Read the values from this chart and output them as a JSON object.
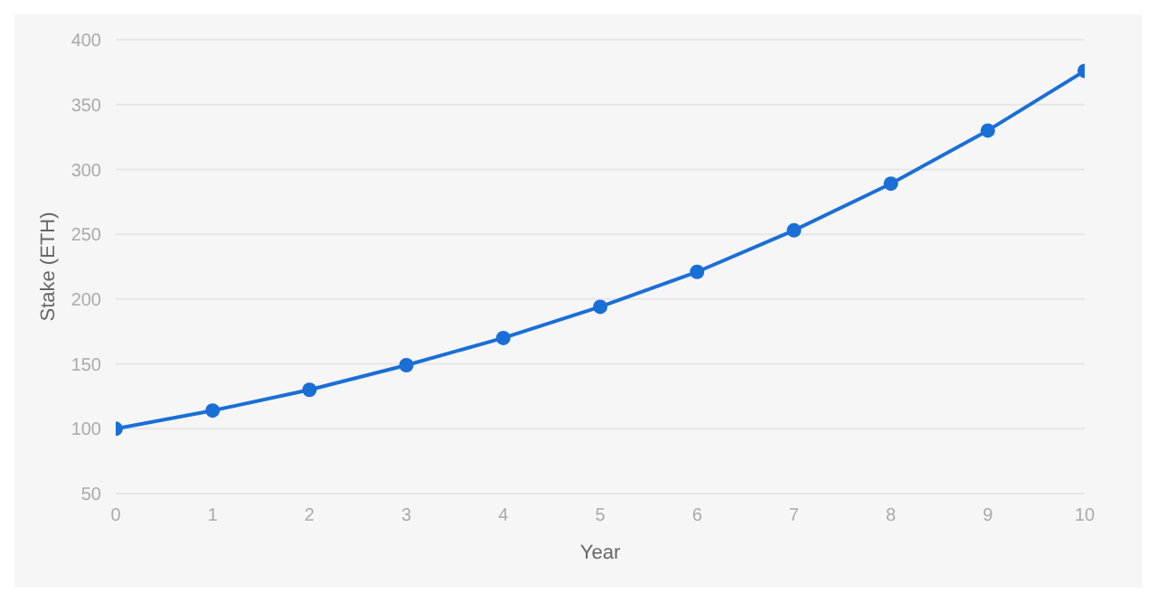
{
  "chart_data": {
    "type": "line",
    "xlabel": "Year",
    "ylabel": "Stake (ETH)",
    "x": [
      0,
      1,
      2,
      3,
      4,
      5,
      6,
      7,
      8,
      9,
      10
    ],
    "series": [
      {
        "color": "#1a6fd6",
        "values": [
          100,
          114,
          130,
          149,
          170,
          194,
          221,
          253,
          289,
          330,
          376
        ]
      }
    ],
    "xlim": [
      0,
      10
    ],
    "xticks": [
      0,
      1,
      2,
      3,
      4,
      5,
      6,
      7,
      8,
      9,
      10
    ],
    "ylim": [
      50,
      400
    ],
    "yticks": [
      50,
      100,
      150,
      200,
      250,
      300,
      350,
      400
    ],
    "grid": "y",
    "marker": "circle",
    "line_style": "solid"
  }
}
